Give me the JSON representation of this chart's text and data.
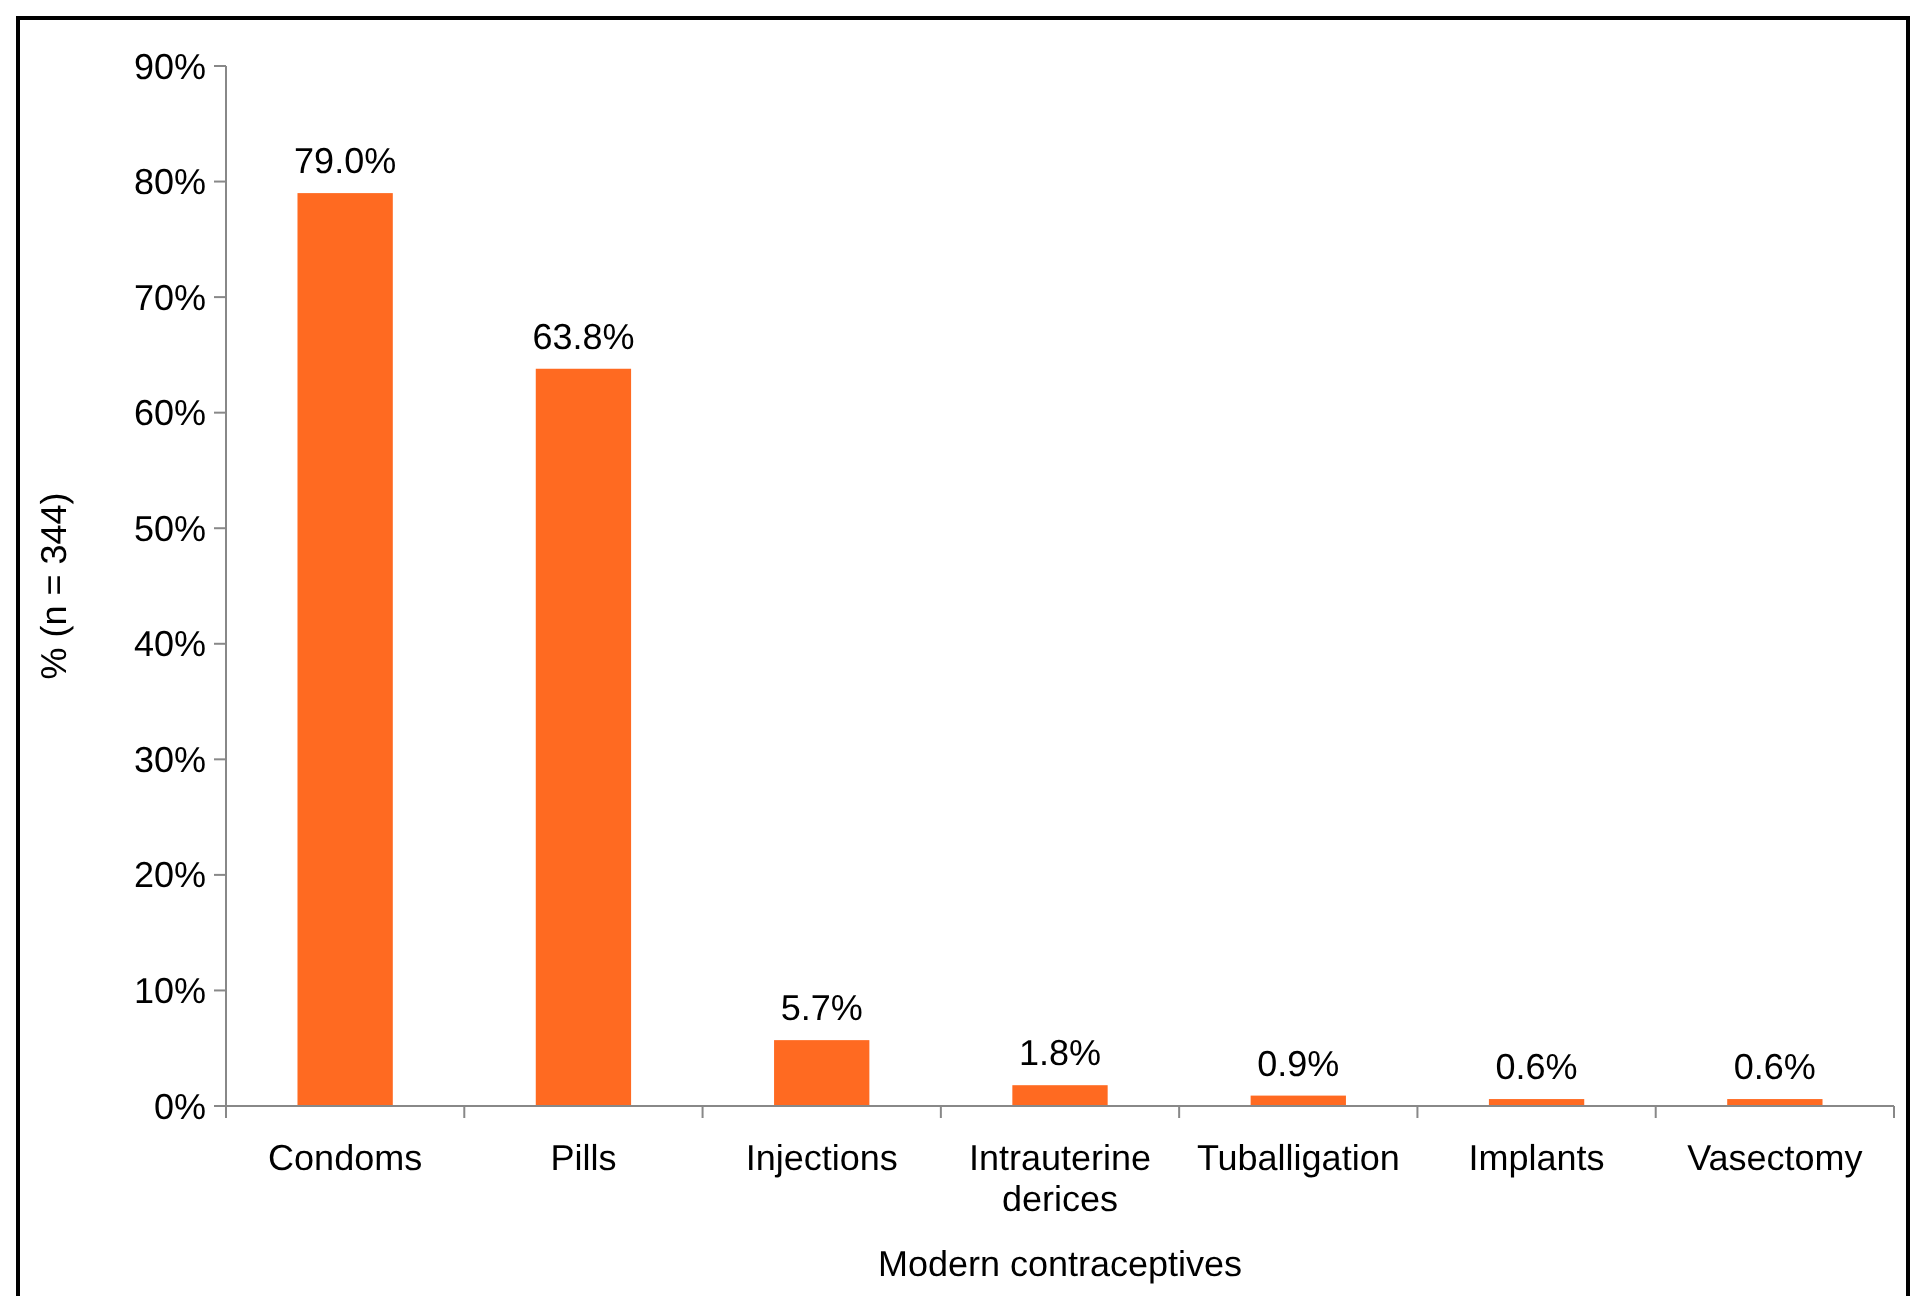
{
  "chart_data": {
    "type": "bar",
    "xlabel": "Modern contraceptives",
    "ylabel": "% (n = 344)",
    "categories": [
      "Condoms",
      "Pills",
      "Injections",
      "Intrauterine derices",
      "Tuballigation",
      "Implants",
      "Vasectomy"
    ],
    "values": [
      79.0,
      63.8,
      5.7,
      1.8,
      0.9,
      0.6,
      0.6
    ],
    "value_labels": [
      "79.0%",
      "63.8%",
      "5.7%",
      "1.8%",
      "0.9%",
      "0.6%",
      "0.6%"
    ],
    "color": "#ff6a21",
    "ylim": [
      0,
      90
    ],
    "yticks": [
      {
        "value": 0,
        "label": "0%"
      },
      {
        "value": 10,
        "label": "10%"
      },
      {
        "value": 20,
        "label": "20%"
      },
      {
        "value": 30,
        "label": "30%"
      },
      {
        "value": 40,
        "label": "40%"
      },
      {
        "value": 50,
        "label": "50%"
      },
      {
        "value": 60,
        "label": "60%"
      },
      {
        "value": 70,
        "label": "70%"
      },
      {
        "value": 80,
        "label": "80%"
      },
      {
        "value": 90,
        "label": "90%"
      }
    ],
    "grid": false
  }
}
